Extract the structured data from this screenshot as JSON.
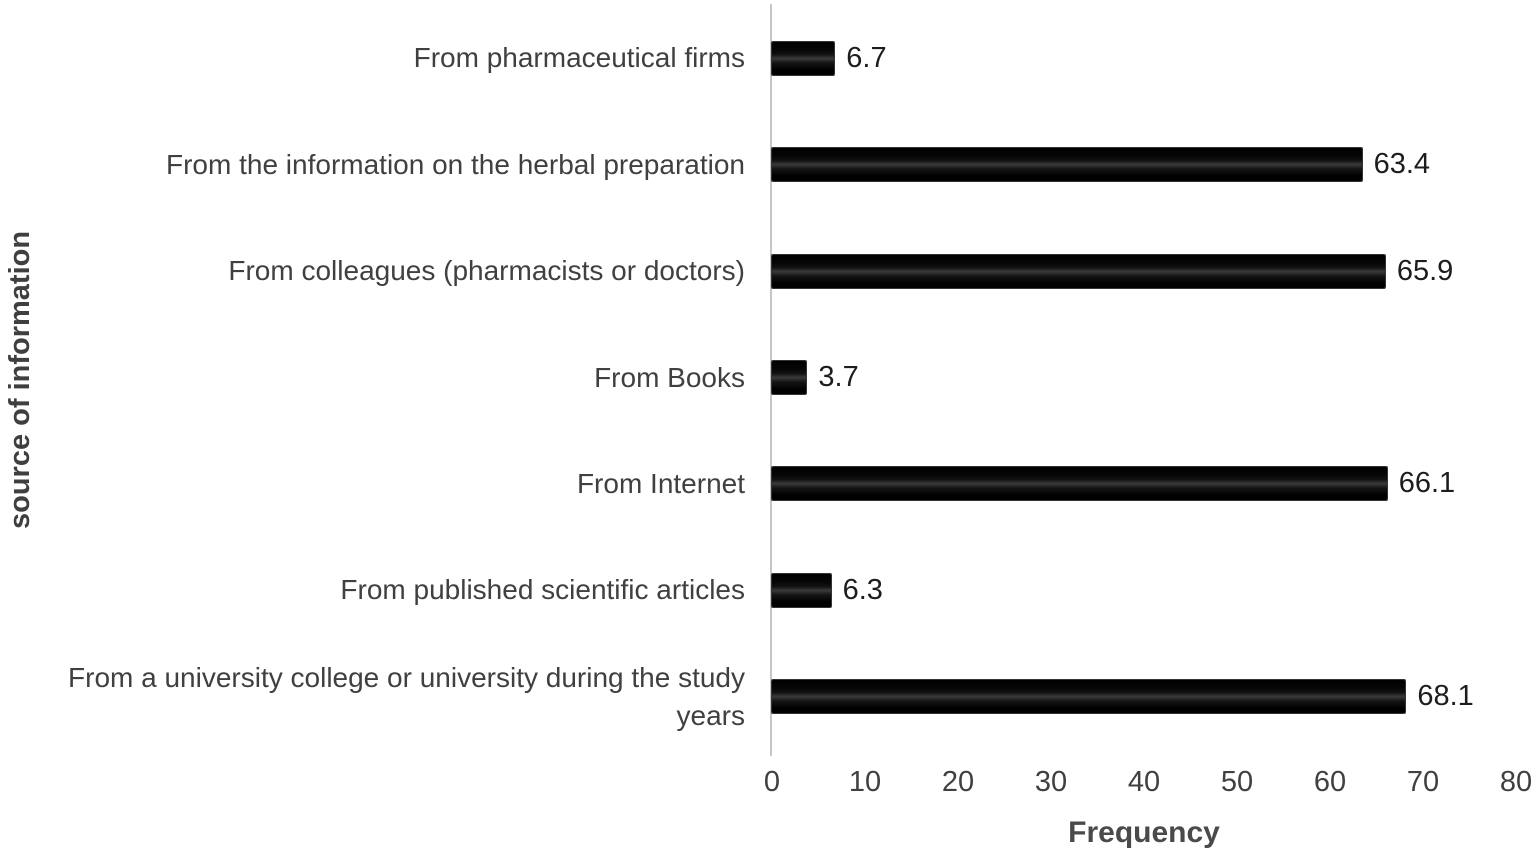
{
  "chart_data": {
    "type": "bar",
    "orientation": "horizontal",
    "title": "",
    "xlabel": "Frequency",
    "ylabel": "source of information",
    "categories": [
      "From pharmaceutical firms",
      "From the information on the herbal preparation",
      "From colleagues (pharmacists or doctors)",
      "From Books",
      "From Internet",
      "From published scientific articles",
      "From a university college or university during the study years"
    ],
    "values": [
      6.7,
      63.4,
      65.9,
      3.7,
      66.1,
      6.3,
      68.1
    ],
    "value_labels": [
      "6.7",
      "63.4",
      "65.9",
      "3.7",
      "66.1",
      "6.3",
      "68.1"
    ],
    "xlim": [
      0,
      80
    ],
    "xticks": [
      "0",
      "10",
      "20",
      "30",
      "40",
      "50",
      "60",
      "70",
      "80"
    ],
    "grid": false,
    "legend": "none",
    "bar_color": "#000000",
    "axis_line_color": "#c6c6c6",
    "category_text_color": "#404040",
    "value_text_color": "#1d1d1d",
    "axis_title_color": "#3f3f3f",
    "background_color": "#ffffff"
  }
}
